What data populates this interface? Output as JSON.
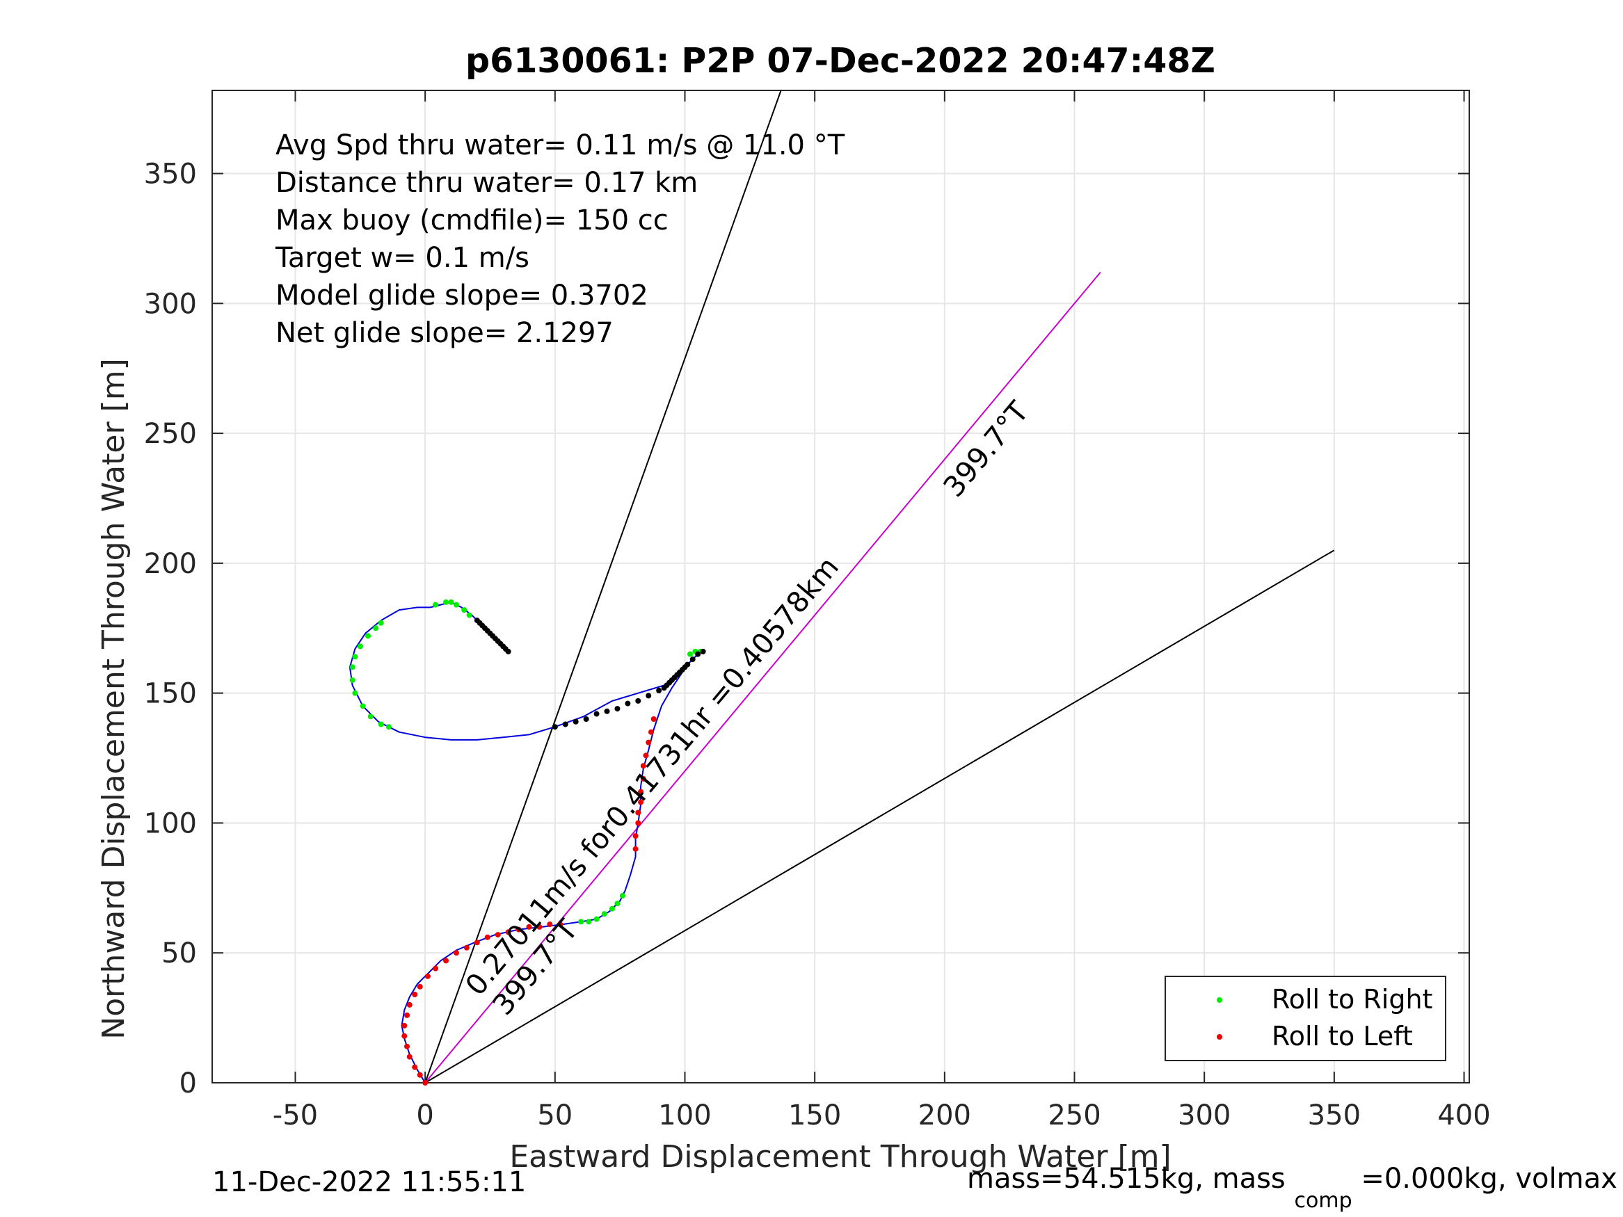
{
  "chart_data": {
    "type": "line",
    "title": "p6130061: P2P 07-Dec-2022 20:47:48Z",
    "xlabel": "Eastward Displacement Through Water [m]",
    "ylabel": "Northward Displacement Through Water [m]",
    "xlim": [
      -82,
      402
    ],
    "ylim": [
      0,
      382
    ],
    "xticks": [
      -50,
      0,
      50,
      100,
      150,
      200,
      250,
      300,
      350,
      400
    ],
    "yticks": [
      0,
      50,
      100,
      150,
      200,
      250,
      300,
      350
    ],
    "xtick_labels": [
      "-50",
      "0",
      "50",
      "100",
      "150",
      "200",
      "250",
      "300",
      "350",
      "400"
    ],
    "ytick_labels": [
      "0",
      "50",
      "100",
      "150",
      "200",
      "250",
      "300",
      "350"
    ],
    "grid": true,
    "legend_position": "bottom-right",
    "info_lines": [
      "Avg Spd thru water=  0.11 m/s @  11.0 °T",
      "Distance thru water=  0.17 km",
      "Max buoy (cmdfile)= 150 cc",
      "Target w= 0.1 m/s",
      "Model glide slope= 0.3702",
      "Net glide slope= 2.1297"
    ],
    "annotations": {
      "heading_upper": "399.7°T",
      "heading_lower": "399.7°T",
      "speed_label": "0.27011m/s for0.41731hr =0.40578km"
    },
    "legend": [
      {
        "label": "Roll to Right",
        "color": "#00ee00"
      },
      {
        "label": "Roll to Left",
        "color": "#ee0000"
      }
    ],
    "colors": {
      "track": "#0000dd",
      "bearing_line": "#cc00cc",
      "sector_line": "#000000",
      "roll_right": "#00ee00",
      "roll_left": "#ee0000",
      "dots": "#000000"
    },
    "bearing_line": [
      [
        0,
        0
      ],
      [
        260,
        312
      ]
    ],
    "sector_lines": [
      [
        [
          0,
          0
        ],
        [
          137,
          382
        ]
      ],
      [
        [
          0,
          0
        ],
        [
          350,
          205
        ]
      ]
    ],
    "track": [
      [
        0,
        0
      ],
      [
        -3,
        5
      ],
      [
        -6,
        11
      ],
      [
        -8,
        17
      ],
      [
        -9,
        22
      ],
      [
        -8,
        28
      ],
      [
        -6,
        33
      ],
      [
        -3,
        38
      ],
      [
        1,
        42
      ],
      [
        6,
        47
      ],
      [
        12,
        51
      ],
      [
        19,
        54
      ],
      [
        27,
        57
      ],
      [
        36,
        59
      ],
      [
        45,
        60
      ],
      [
        53,
        61
      ],
      [
        60,
        62
      ],
      [
        66,
        63
      ],
      [
        71,
        66
      ],
      [
        75,
        70
      ],
      [
        77,
        74
      ],
      [
        79,
        80
      ],
      [
        81,
        87
      ],
      [
        81,
        94
      ],
      [
        82,
        100
      ],
      [
        83,
        107
      ],
      [
        83,
        114
      ],
      [
        84,
        121
      ],
      [
        86,
        128
      ],
      [
        88,
        136
      ],
      [
        91,
        145
      ],
      [
        95,
        152
      ],
      [
        99,
        158
      ],
      [
        102,
        162
      ],
      [
        105,
        165
      ],
      [
        107,
        166
      ],
      [
        104,
        164
      ],
      [
        98,
        158
      ],
      [
        92,
        153
      ],
      [
        82,
        150
      ],
      [
        72,
        147
      ],
      [
        61,
        141
      ],
      [
        50,
        137
      ],
      [
        40,
        134
      ],
      [
        30,
        133
      ],
      [
        20,
        132
      ],
      [
        10,
        132
      ],
      [
        0,
        133
      ],
      [
        -10,
        135
      ],
      [
        -18,
        139
      ],
      [
        -24,
        145
      ],
      [
        -28,
        153
      ],
      [
        -29,
        160
      ],
      [
        -27,
        167
      ],
      [
        -23,
        173
      ],
      [
        -17,
        178
      ],
      [
        -10,
        182
      ],
      [
        -3,
        183
      ],
      [
        2,
        183
      ],
      [
        6,
        184
      ],
      [
        10,
        185
      ],
      [
        14,
        183
      ],
      [
        18,
        180
      ],
      [
        22,
        176
      ],
      [
        26,
        172
      ],
      [
        30,
        168
      ],
      [
        32,
        166
      ]
    ],
    "roll_right_points": [
      [
        -27,
        150
      ],
      [
        -28,
        155
      ],
      [
        -28,
        160
      ],
      [
        -27,
        164
      ],
      [
        -25,
        168
      ],
      [
        -22,
        172
      ],
      [
        -19,
        175
      ],
      [
        -17,
        177
      ],
      [
        -24,
        145
      ],
      [
        -21,
        141
      ],
      [
        -17,
        138
      ],
      [
        -14,
        137
      ],
      [
        4,
        184
      ],
      [
        8,
        185
      ],
      [
        10,
        185
      ],
      [
        12,
        184
      ],
      [
        15,
        182
      ],
      [
        17,
        180
      ],
      [
        60,
        62
      ],
      [
        63,
        62
      ],
      [
        66,
        63
      ],
      [
        69,
        65
      ],
      [
        72,
        67
      ],
      [
        74,
        69
      ],
      [
        76,
        72
      ],
      [
        102,
        165
      ],
      [
        104,
        166
      ],
      [
        106,
        166
      ]
    ],
    "roll_left_points": [
      [
        0,
        0
      ],
      [
        -2,
        3
      ],
      [
        -4,
        6
      ],
      [
        -6,
        10
      ],
      [
        -7,
        14
      ],
      [
        -8,
        18
      ],
      [
        -8,
        22
      ],
      [
        -7,
        26
      ],
      [
        -6,
        30
      ],
      [
        -4,
        34
      ],
      [
        -2,
        37
      ],
      [
        1,
        41
      ],
      [
        4,
        44
      ],
      [
        8,
        47
      ],
      [
        12,
        50
      ],
      [
        16,
        52
      ],
      [
        20,
        54
      ],
      [
        24,
        56
      ],
      [
        28,
        57
      ],
      [
        32,
        58
      ],
      [
        36,
        59
      ],
      [
        40,
        60
      ],
      [
        44,
        60
      ],
      [
        48,
        61
      ],
      [
        52,
        61
      ],
      [
        81,
        90
      ],
      [
        81,
        95
      ],
      [
        82,
        100
      ],
      [
        82,
        104
      ],
      [
        83,
        108
      ],
      [
        83,
        112
      ],
      [
        84,
        117
      ],
      [
        84,
        122
      ],
      [
        85,
        126
      ],
      [
        86,
        131
      ],
      [
        87,
        135
      ],
      [
        88,
        140
      ]
    ],
    "dot_points": [
      [
        50,
        137
      ],
      [
        54,
        138
      ],
      [
        58,
        139
      ],
      [
        62,
        140
      ],
      [
        66,
        142
      ],
      [
        70,
        143
      ],
      [
        74,
        144
      ],
      [
        78,
        146
      ],
      [
        82,
        147
      ],
      [
        86,
        149
      ],
      [
        90,
        151
      ],
      [
        93,
        153
      ],
      [
        95,
        155
      ],
      [
        97,
        157
      ],
      [
        99,
        159
      ],
      [
        101,
        161
      ],
      [
        103,
        163
      ],
      [
        105,
        165
      ],
      [
        107,
        166
      ],
      [
        92,
        152
      ],
      [
        94,
        154
      ],
      [
        96,
        156
      ],
      [
        98,
        158
      ],
      [
        100,
        160
      ],
      [
        20,
        178
      ],
      [
        21,
        177
      ],
      [
        22,
        176
      ],
      [
        23,
        175
      ],
      [
        24,
        174
      ],
      [
        25,
        173
      ],
      [
        26,
        172
      ],
      [
        27,
        171
      ],
      [
        28,
        170
      ],
      [
        29,
        169
      ],
      [
        30,
        168
      ],
      [
        31,
        167
      ],
      [
        32,
        166
      ]
    ]
  },
  "footer": {
    "left": "11-Dec-2022 11:55:11",
    "right_prefix": "mass=54.515kg, mass",
    "right_subscript": "comp",
    "right_suffix": "=0.000kg, volmax"
  }
}
